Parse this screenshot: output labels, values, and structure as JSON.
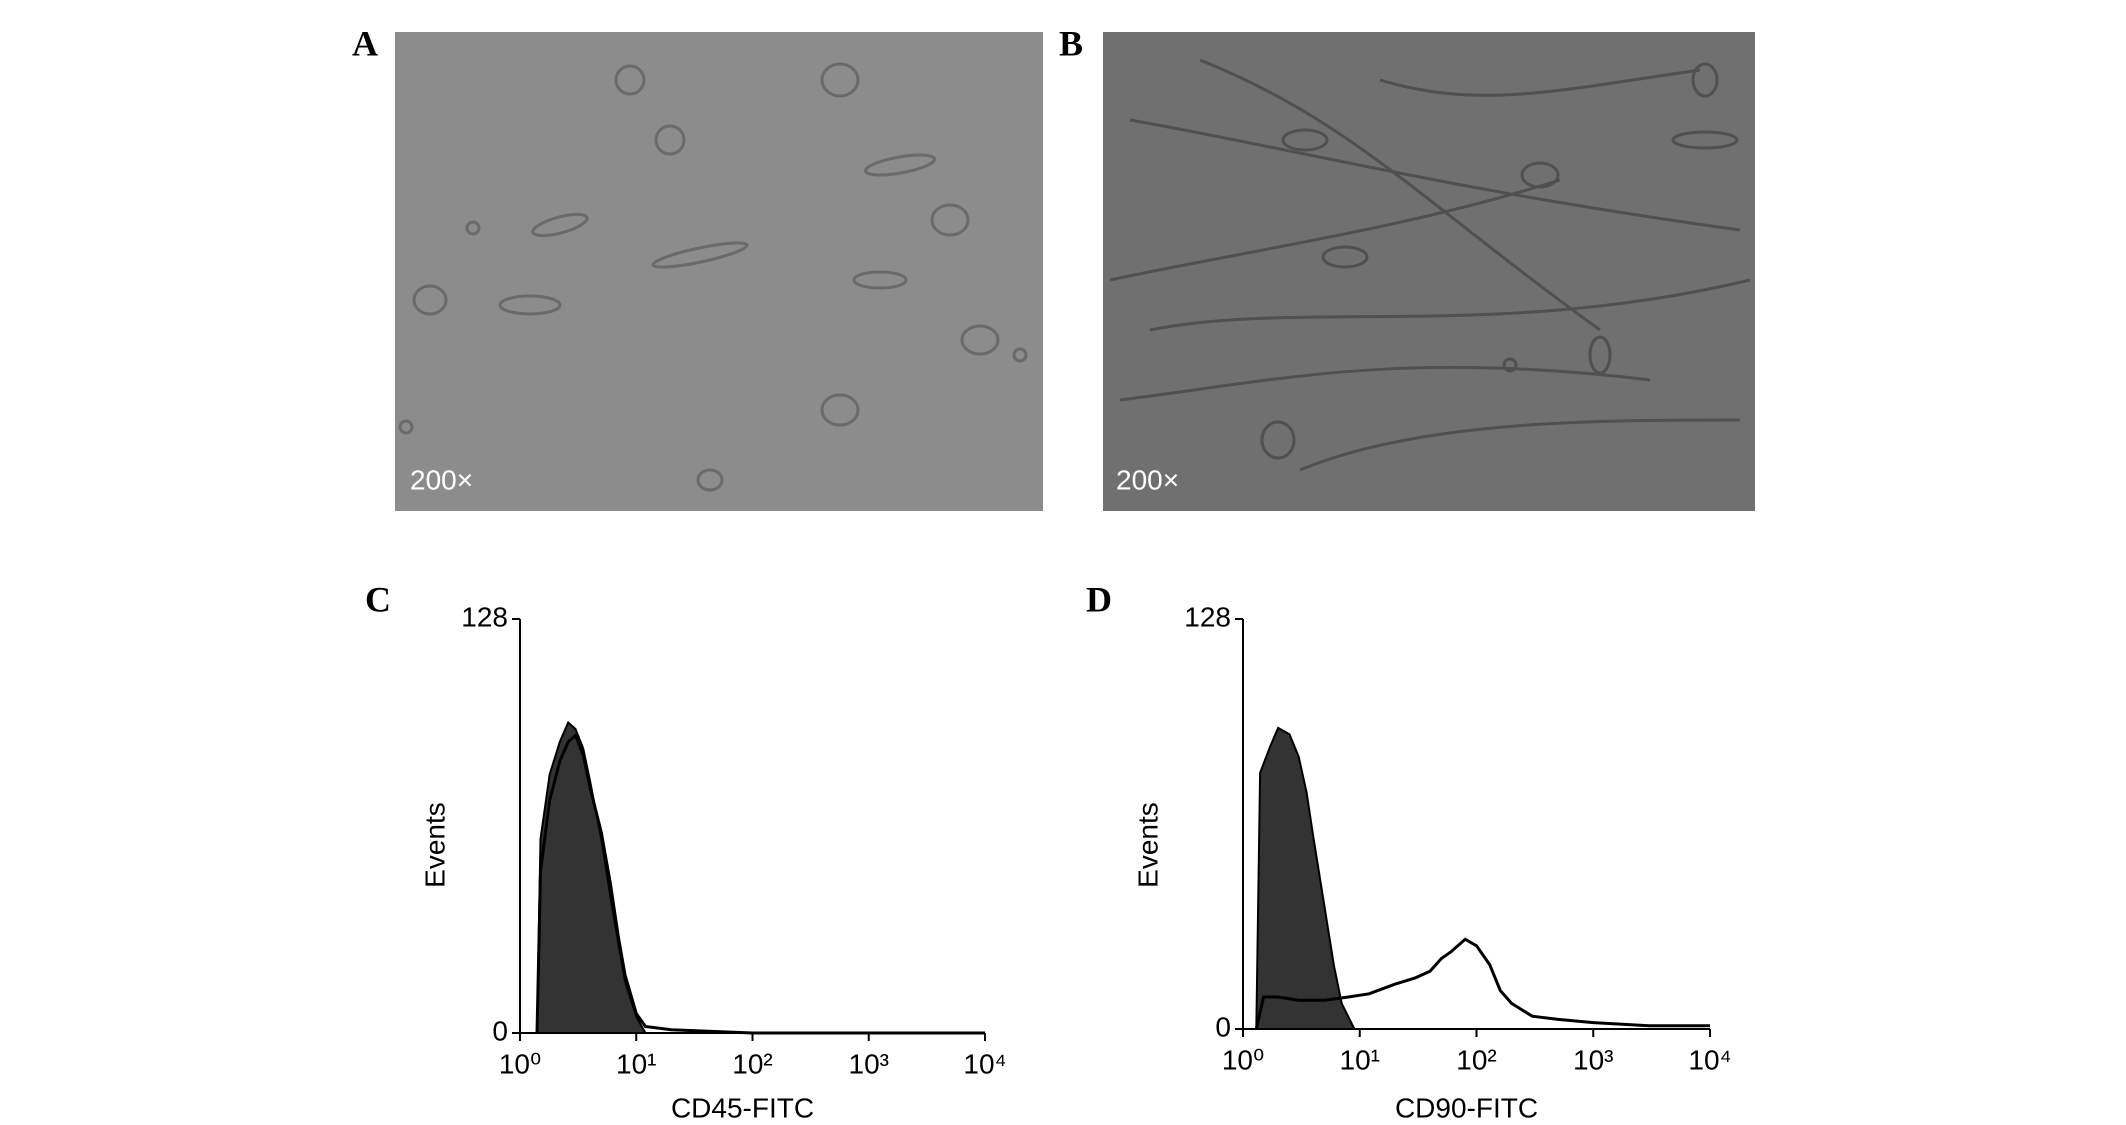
{
  "images": [
    {
      "panel_label": "A",
      "magnification": "200×"
    },
    {
      "panel_label": "B",
      "magnification": "200×"
    }
  ],
  "chart_data": [
    {
      "type": "line",
      "panel_label": "C",
      "x_label": "CD45-FITC",
      "y_label": "Events",
      "xscale": "log",
      "xlim": [
        1,
        10000
      ],
      "ylim": [
        0,
        128
      ],
      "xticks": [
        {
          "value": 1,
          "label": "10⁰"
        },
        {
          "value": 10,
          "label": "10¹"
        },
        {
          "value": 100,
          "label": "10²"
        },
        {
          "value": 1000,
          "label": "10³"
        },
        {
          "value": 10000,
          "label": "10⁴"
        }
      ],
      "yticks": [
        0,
        128
      ],
      "series": [
        {
          "color": "#333333",
          "filled": true,
          "x": [
            1.4,
            1.5,
            1.8,
            2.2,
            2.6,
            3,
            3.5,
            4,
            5,
            6,
            7,
            8,
            10,
            12
          ],
          "values": [
            0,
            60,
            80,
            90,
            96,
            94,
            88,
            78,
            60,
            42,
            28,
            16,
            5,
            0
          ]
        },
        {
          "color": "#000000",
          "filled": false,
          "x": [
            1.4,
            1.5,
            1.8,
            2.2,
            2.6,
            3,
            3.5,
            4,
            5,
            6,
            7,
            8,
            10,
            12,
            20,
            100,
            10000
          ],
          "values": [
            0,
            50,
            72,
            84,
            90,
            92,
            86,
            76,
            62,
            46,
            30,
            18,
            6,
            2,
            1,
            0,
            0
          ]
        }
      ]
    },
    {
      "type": "line",
      "panel_label": "D",
      "x_label": "CD90-FITC",
      "y_label": "Events",
      "xscale": "log",
      "xlim": [
        1,
        10000
      ],
      "ylim": [
        0,
        128
      ],
      "xticks": [
        {
          "value": 1,
          "label": "10⁰"
        },
        {
          "value": 10,
          "label": "10¹"
        },
        {
          "value": 100,
          "label": "10²"
        },
        {
          "value": 1000,
          "label": "10³"
        },
        {
          "value": 10000,
          "label": "10⁴"
        }
      ],
      "yticks": [
        0,
        128
      ],
      "series": [
        {
          "color": "#333333",
          "filled": true,
          "x": [
            1.3,
            1.4,
            1.7,
            2,
            2.5,
            3,
            3.5,
            4,
            5,
            6,
            7,
            9
          ],
          "values": [
            0,
            80,
            88,
            94,
            92,
            85,
            74,
            60,
            38,
            20,
            8,
            0
          ]
        },
        {
          "color": "#000000",
          "filled": false,
          "x": [
            1.3,
            1.5,
            2,
            3,
            5,
            8,
            12,
            20,
            30,
            40,
            50,
            60,
            80,
            100,
            130,
            160,
            200,
            300,
            500,
            1000,
            3000,
            10000
          ],
          "values": [
            0,
            10,
            10,
            9,
            9,
            10,
            11,
            14,
            16,
            18,
            22,
            24,
            28,
            26,
            20,
            12,
            8,
            4,
            3,
            2,
            1,
            1
          ]
        }
      ]
    }
  ]
}
